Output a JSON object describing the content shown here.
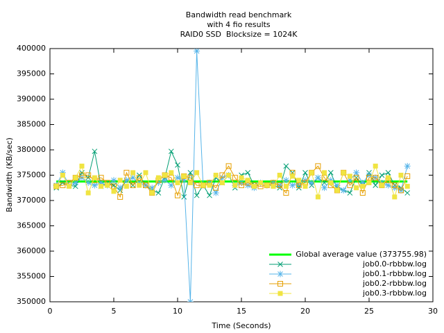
{
  "chart_data": {
    "type": "line",
    "title": [
      "Bandwidth read benchmark",
      "with 4 fio results",
      "RAID0 SSD  Blocksize = 1024K"
    ],
    "x_label": "Time (Seconds)",
    "y_label": "Bandwidth (KB/sec)",
    "xlim": [
      0,
      30
    ],
    "ylim": [
      350000,
      400000
    ],
    "xticks": [
      0,
      5,
      10,
      15,
      20,
      25,
      30
    ],
    "yticks": [
      350000,
      355000,
      360000,
      365000,
      370000,
      375000,
      380000,
      385000,
      390000,
      395000,
      400000
    ],
    "grid": false,
    "legend": "lower right",
    "average": {
      "name": "Global average value (373755.98)",
      "color": "#00ff00",
      "value": 373755.98
    },
    "x": [
      0.5,
      1,
      1.5,
      2,
      2.5,
      3,
      3.5,
      4,
      4.5,
      5,
      5.5,
      6,
      6.5,
      7,
      7.5,
      8,
      8.5,
      9,
      9.5,
      10,
      10.5,
      11,
      11.5,
      12,
      12.5,
      13,
      13.5,
      14,
      14.5,
      15,
      15.5,
      16,
      16.5,
      17,
      17.5,
      18,
      18.5,
      19,
      19.5,
      20,
      20.5,
      21,
      21.5,
      22,
      22.5,
      23,
      23.5,
      24,
      24.5,
      25,
      25.5,
      26,
      26.5,
      27,
      27.5,
      28
    ],
    "series": [
      {
        "name": "job0.0-rbbbw.log",
        "color": "#009e73",
        "marker": "x",
        "values": [
          372500,
          373500,
          373000,
          372800,
          375500,
          374500,
          379700,
          372800,
          373500,
          373000,
          372000,
          374000,
          373000,
          375000,
          373000,
          372000,
          371500,
          374500,
          379700,
          377000,
          370700,
          375500,
          371000,
          373000,
          371000,
          374500,
          373500,
          375000,
          372500,
          375000,
          375500,
          373000,
          373500,
          373000,
          373000,
          372500,
          376800,
          375500,
          372500,
          375500,
          373000,
          374500,
          373500,
          375500,
          372500,
          372000,
          371500,
          374500,
          373000,
          375500,
          373000,
          375000,
          375500,
          373000,
          372500,
          371500
        ]
      },
      {
        "name": "job0.1-rbbbw.log",
        "color": "#56b4e9",
        "marker": "star",
        "values": [
          373000,
          375500,
          373000,
          373500,
          374500,
          373500,
          373000,
          373500,
          373000,
          374000,
          372500,
          374000,
          374500,
          373500,
          373000,
          372500,
          373500,
          374000,
          373000,
          374500,
          374000,
          350000,
          399500,
          373000,
          373500,
          371500,
          374500,
          375000,
          373000,
          373500,
          373000,
          372500,
          373500,
          373000,
          373500,
          373000,
          374000,
          373000,
          373500,
          374000,
          373500,
          374500,
          372500,
          374000,
          373000,
          372000,
          374000,
          375500,
          373500,
          375000,
          374500,
          373500,
          373000,
          372500,
          372000,
          376800
        ]
      },
      {
        "name": "job0.2-rbbbw.log",
        "color": "#e69f00",
        "marker": "square",
        "values": [
          372800,
          373000,
          373500,
          374500,
          375000,
          375000,
          374000,
          374500,
          373500,
          372800,
          370700,
          375500,
          373000,
          374500,
          373000,
          371500,
          374000,
          375000,
          374500,
          371000,
          374800,
          374500,
          373000,
          373000,
          373500,
          372500,
          375000,
          376800,
          374500,
          373000,
          373500,
          373000,
          372800,
          373000,
          373500,
          373000,
          371500,
          375500,
          373000,
          373500,
          375500,
          376800,
          374500,
          373000,
          372000,
          375500,
          373000,
          374500,
          371500,
          374500,
          374500,
          373000,
          374000,
          373000,
          372000,
          374800
        ]
      },
      {
        "name": "job0.3-rbbbw.log",
        "color": "#f0e442",
        "marker": "filled-square",
        "values": [
          372800,
          375000,
          372800,
          374500,
          376800,
          371500,
          374500,
          372800,
          373000,
          371800,
          374000,
          372800,
          375500,
          373000,
          375500,
          371500,
          374500,
          375000,
          375500,
          373500,
          374800,
          373500,
          375500,
          373000,
          373000,
          375000,
          373500,
          375000,
          373000,
          374500,
          374000,
          372800,
          373500,
          373000,
          372800,
          375000,
          372800,
          374800,
          374000,
          372800,
          375500,
          370700,
          375500,
          373500,
          372000,
          375500,
          374800,
          372500,
          372800,
          373500,
          376800,
          373000,
          374500,
          370700,
          375000,
          372800
        ]
      }
    ]
  }
}
